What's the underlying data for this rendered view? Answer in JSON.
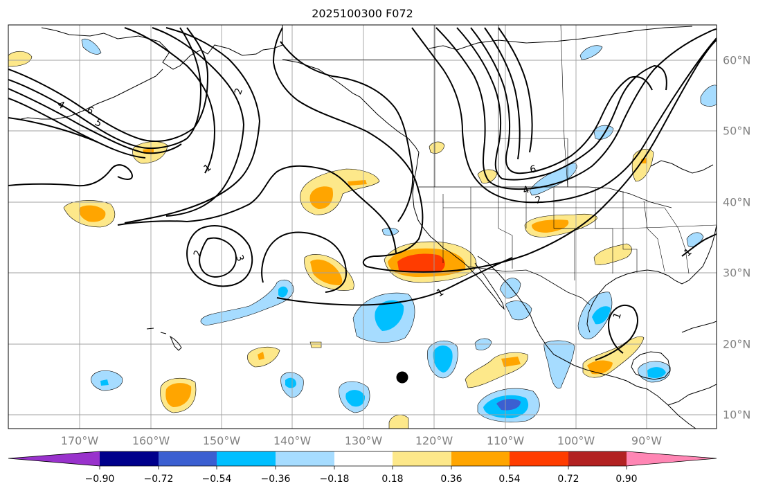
{
  "title": "2025100300 F072",
  "map": {
    "lon_labels": [
      "170°W",
      "160°W",
      "150°W",
      "140°W",
      "130°W",
      "120°W",
      "110°W",
      "100°W",
      "90°W"
    ],
    "lat_labels": [
      "60°N",
      "50°N",
      "40°N",
      "30°N",
      "20°N",
      "10°N"
    ],
    "contour_labels": [
      "4",
      "5",
      "6",
      "2",
      "1",
      "2",
      "3",
      "6",
      "4",
      "2",
      "1",
      "1",
      "1"
    ],
    "storm_marker": "filled-black-circle",
    "colors": {
      "coast": "#000000",
      "contour": "#000000",
      "grid": "#a0a0a0",
      "neg_light": "#a6dcff",
      "neg_mid": "#00bfff",
      "neg_dark": "#3b5fd1",
      "pos_light": "#fde88a",
      "pos_mid": "#ffa500",
      "pos_dark": "#ff3c00"
    }
  },
  "colorbar": {
    "tick_labels": [
      "−0.90",
      "−0.72",
      "−0.54",
      "−0.36",
      "−0.18",
      "0.18",
      "0.36",
      "0.54",
      "0.72",
      "0.90"
    ],
    "colors": [
      "#9932cc",
      "#00008b",
      "#3b5fd1",
      "#00bfff",
      "#a6dcff",
      "#ffffff",
      "#fde88a",
      "#ffa500",
      "#ff3c00",
      "#b22222",
      "#ff86b4"
    ]
  }
}
